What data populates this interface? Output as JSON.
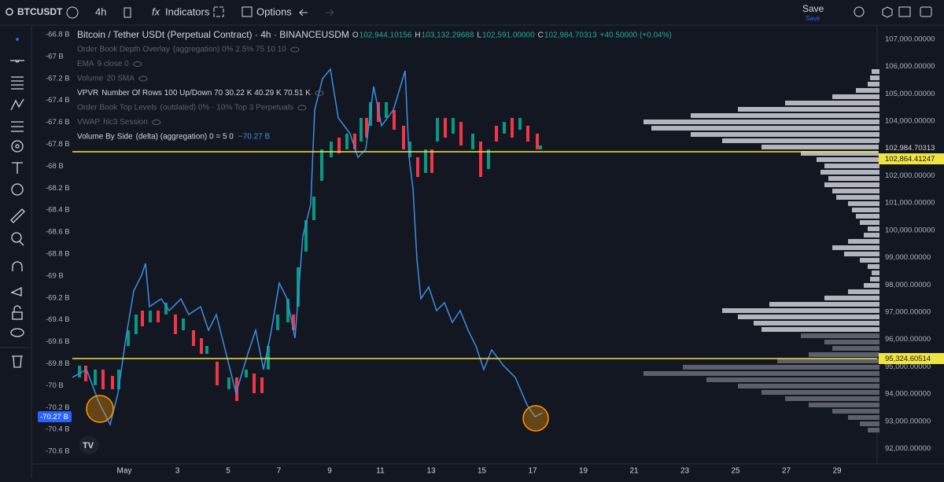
{
  "toolbar": {
    "symbol": "BTCUSDT",
    "interval": "4h",
    "indicators": "Indicators",
    "options": "Options",
    "save": "Save",
    "save_sub": "Save"
  },
  "legend": {
    "title": "Bitcoin / Tether USDt (Perpetual Contract) · 4h · BINANCEUSDM",
    "quote": [
      {
        "label": "O",
        "value": "102,944.10156"
      },
      {
        "label": "H",
        "value": "103,132.29688"
      },
      {
        "label": "L",
        "value": "102,591.00000"
      },
      {
        "label": "C",
        "value": "102,984.70313"
      }
    ],
    "change": "+40.50000 (+0.04%)",
    "indicators": [
      {
        "name": "Order Book Depth Overlay",
        "params": "(aggregation) 0% 2.5% 75 10 10"
      },
      {
        "name": "EMA",
        "params": "9 close 0"
      },
      {
        "name": "Volume",
        "params": "20 SMA"
      },
      {
        "name": "VPVR",
        "params": "Number Of Rows 100 Up/Down 70  30.22 K  40.29 K  70.51 K"
      },
      {
        "name": "Order Book Top Levels",
        "params": "(outdated) 0% - 10% Top 3 Perpetuals"
      },
      {
        "name": "VWAP",
        "params": "hlc3 Session"
      },
      {
        "name": "Volume By Side",
        "params": "(delta) (aggregation) 0 = 5 0",
        "value": "−70.27 B"
      }
    ]
  },
  "left_axis": {
    "labels": [
      "-66.8 B",
      "-67 B",
      "-67.2 B",
      "-67.4 B",
      "-67.6 B",
      "-67.8 B",
      "-68 B",
      "-68.2 B",
      "-68.4 B",
      "-68.6 B",
      "-68.8 B",
      "-69 B",
      "-69.2 B",
      "-69.4 B",
      "-69.6 B",
      "-69.8 B",
      "-70 B",
      "-70.2 B",
      "-70.4 B",
      "-70.6 B"
    ],
    "marker": "-70.27 B"
  },
  "right_axis": {
    "labels": [
      "107,000.00000",
      "106,000.00000",
      "105,000.00000",
      "104,000.00000",
      "103,000.00000",
      "102,000.00000",
      "101,000.00000",
      "100,000.00000",
      "99,000.00000",
      "98,000.00000",
      "97,000.00000",
      "96,000.00000",
      "95,000.00000",
      "94,000.00000",
      "93,000.00000",
      "92,000.00000"
    ],
    "markers": [
      "102,984.70313",
      "102,864.41247",
      "95,324.60514"
    ]
  },
  "bottom_axis": {
    "labels": [
      "May",
      "3",
      "5",
      "7",
      "9",
      "11",
      "13",
      "15",
      "17",
      "19",
      "21",
      "23",
      "25",
      "27",
      "29"
    ]
  }
}
